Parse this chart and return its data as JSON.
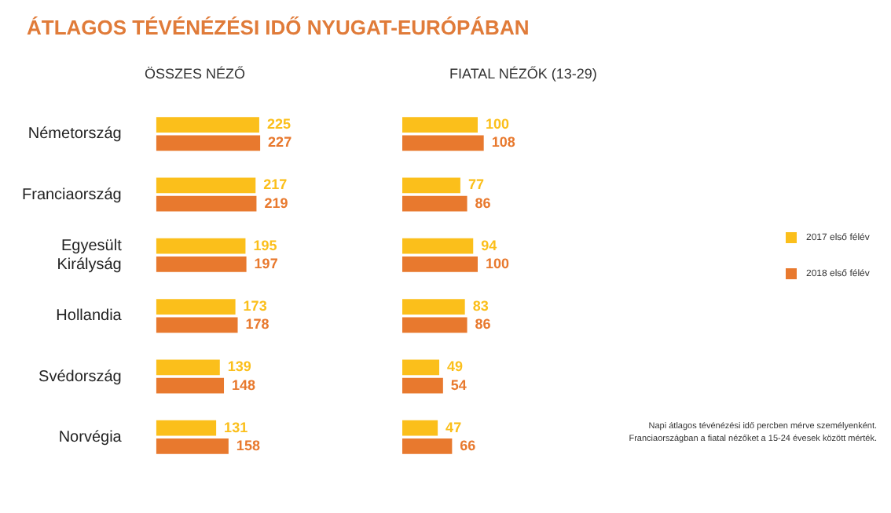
{
  "chart_data": [
    {
      "type": "bar",
      "orientation": "horizontal",
      "title": "ÁTLAGOS TÉVÉNÉZÉSI IDŐ NYUGAT-EURÓPÁBAN",
      "subtitle": "ÖSSZES NÉZŐ",
      "categories": [
        "Németország",
        "Franciaország",
        "Egyesült Királyság",
        "Hollandia",
        "Svédország",
        "Norvégia"
      ],
      "series": [
        {
          "name": "2017 első félév",
          "color": "#fbbf1b",
          "values": [
            225,
            217,
            195,
            173,
            139,
            131
          ]
        },
        {
          "name": "2018 első félév",
          "color": "#e8792e",
          "values": [
            227,
            219,
            197,
            178,
            148,
            158
          ]
        }
      ],
      "data_labels": true,
      "tick_labels": "y",
      "legend": "right"
    },
    {
      "type": "bar",
      "orientation": "horizontal",
      "subtitle": "FIATAL NÉZŐK (13-29)",
      "categories": [
        null,
        null,
        null,
        null,
        null,
        null
      ],
      "series": [
        {
          "color": "#fbbf1b",
          "values": [
            100,
            77,
            94,
            83,
            49,
            47
          ]
        },
        {
          "color": "#e8792e",
          "values": [
            108,
            86,
            100,
            86,
            54,
            66
          ]
        }
      ],
      "data_labels": true,
      "tick_labels": false,
      "annotations": [
        "Napi átlagos tévénézési idő percben mérve személyenként.",
        "Franciaországban a fiatal nézőket a 15-24 évesek között mérték."
      ]
    }
  ]
}
